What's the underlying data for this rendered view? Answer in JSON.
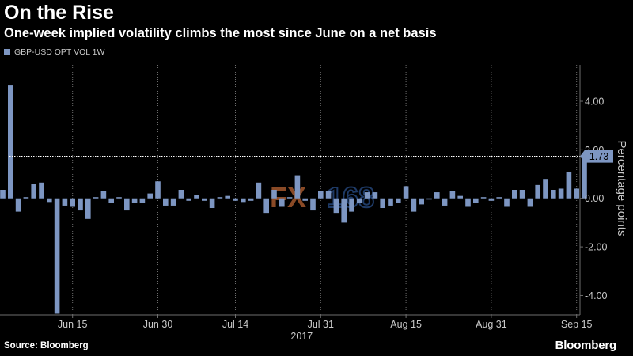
{
  "title": "On the Rise",
  "subtitle": "One-week implied volatility climbs the most since June on a net basis",
  "source": "Source: Bloomberg",
  "logo": "Bloomberg",
  "watermark": "FX168",
  "colors": {
    "background": "#000000",
    "bar": "#7d96c2",
    "grid": "#6e6e6e",
    "text": "#c8c8c8",
    "reference_line": "#ffffff",
    "watermark_fx": "#8a4a26",
    "watermark_168": "#1e3a66"
  },
  "chart_data": {
    "type": "bar",
    "title": "On the Rise",
    "subtitle": "One-week implied volatility climbs the most since June on a net basis",
    "ylabel": "Percentage points",
    "ylim": [
      -4.8,
      5.5
    ],
    "y_ticks": [
      4.0,
      2.0,
      0.0,
      -2.0,
      -4.0
    ],
    "y_tick_labels": [
      "4.00",
      "2.00",
      "0.00",
      "-2.00",
      "-4.00"
    ],
    "x_ticks": [
      "Jun 15",
      "Jun 30",
      "Jul 14",
      "Jul 31",
      "Aug 15",
      "Aug 31",
      "Sep 15"
    ],
    "x_tick_index": [
      9,
      20,
      30,
      41,
      52,
      63,
      74
    ],
    "x_year_label": "2017",
    "grid": "vertical dotted",
    "legend_position": "top-left",
    "last_value_label": "1.73",
    "reference_value": 1.73,
    "series": [
      {
        "name": "GBP-USD OPT VOL 1W",
        "values": [
          0.35,
          4.65,
          -0.55,
          0.05,
          0.6,
          0.65,
          -0.15,
          -4.75,
          -0.3,
          -0.35,
          -0.5,
          -0.85,
          0.05,
          0.3,
          -0.2,
          0.05,
          -0.5,
          -0.2,
          -0.2,
          0.2,
          0.7,
          -0.3,
          -0.3,
          0.35,
          -0.1,
          0.15,
          -0.1,
          -0.4,
          0.05,
          0.1,
          -0.1,
          -0.15,
          -0.1,
          0.65,
          -0.6,
          0.35,
          -0.35,
          0.05,
          0.95,
          -0.1,
          -0.5,
          0.3,
          0.3,
          -0.6,
          -1.0,
          -0.55,
          -0.2,
          0.25,
          0.25,
          -0.4,
          -0.3,
          -0.2,
          0.5,
          -0.55,
          -0.25,
          -0.05,
          0.25,
          -0.3,
          0.3,
          0.1,
          -0.35,
          -0.2,
          0.05,
          -0.1,
          0.05,
          -0.35,
          0.35,
          0.35,
          -0.35,
          0.55,
          0.8,
          0.35,
          0.4,
          1.1,
          0.4,
          1.73
        ]
      }
    ]
  }
}
